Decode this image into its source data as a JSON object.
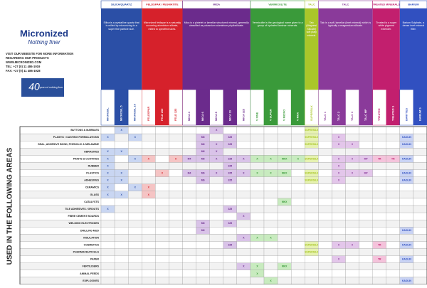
{
  "header": {
    "brand": "Micronized",
    "tagline": "Nothing finer",
    "info": [
      "VISIT OUR WEBSITE FOR MORE INFORMATION",
      "REGARDING OUR PRODUCTS",
      "WWW.MICRONIZED.COM",
      "TEL: +27 (0) 11 486-1919",
      "FAX: +27 (0) 11 486-1928"
    ],
    "badge_number": "40",
    "badge_text": "years of nothing finer"
  },
  "side_label": "USED IN THE FOLLOWING AREAS",
  "groups": [
    {
      "name": "SILICA/QUARTZ",
      "color": "#2b4fa6",
      "light": "#c9d6f2",
      "description": "Silica is a crystalline quartz that is milled by micronizing to a super fine particle size.",
      "columns": [
        "MICROSIL",
        "MICROSIL 5",
        "MICROSIL 10"
      ]
    },
    {
      "name": "FELDSPAR / PEGMATITE",
      "color": "#d6212b",
      "light": "#f5c4c4",
      "description": "Micronized feldspar is a naturally occurring aluminium silicate, milled to specified sizes.",
      "columns": [
        "FELDSPAR",
        "FELD 200",
        "FELD 325"
      ]
    },
    {
      "name": "MICA",
      "color": "#6b2b8c",
      "light": "#d9c3e8",
      "description": "Mica is a platelet or lamellar structured mineral, generally classified as potassium aluminium phyllosilicate.",
      "columns": [
        "MICA 4",
        "MICA 6",
        "MICA 8",
        "MICA 10",
        "MICA 325"
      ]
    },
    {
      "name": "VERMICULITE",
      "color": "#3a9a3a",
      "light": "#c8ebbf",
      "description": "Vermiculite is the geological name given to a group of hydrated laminar minerals.",
      "columns": [
        "V FINE",
        "V SUPER",
        "V MICRO",
        "V MKX"
      ]
    },
    {
      "name": "TALC",
      "color": "#aac62a",
      "light": "#e6f2b0",
      "description": "Talc (Magnesium Silicate) soft platy mineral.",
      "columns": [
        "SUPERSILK"
      ]
    },
    {
      "name": "TALC",
      "color": "#8a3a9a",
      "light": "#e3c6ea",
      "description": "Talc is a soft, lamellar (inert mineral) which is typically a magnesium silicate.",
      "columns": [
        "TALC 1",
        "TALC 2",
        "TALC 3",
        "TALC MP"
      ]
    },
    {
      "name": "TREATED MINERALS",
      "color": "#c21f6e",
      "light": "#f4c3db",
      "description": "Treated is a super white pigment extender.",
      "columns": [
        "TREATED",
        "TREATED S"
      ]
    },
    {
      "name": "BARIUM",
      "color": "#3150c0",
      "light": "#c9d3f4",
      "description": "Barium Sulphate, a dense inert mineral filler.",
      "columns": [
        "BARYTES",
        "BARIUM S"
      ]
    }
  ],
  "rows": [
    {
      "label": "BUTTONS & MARBLES",
      "cells": [
        null,
        "X",
        null,
        null,
        null,
        null,
        null,
        null,
        "X",
        null,
        null,
        null,
        null,
        null,
        null,
        "SUPERSILK",
        null,
        null,
        null,
        null,
        null,
        null,
        null,
        null
      ]
    },
    {
      "label": "PLASTIC / CASTING FORMULATIONS",
      "cells": [
        "X",
        null,
        "X",
        null,
        null,
        null,
        null,
        "M6",
        null,
        "325",
        null,
        null,
        null,
        null,
        null,
        "SUPERSILK",
        null,
        "X",
        null,
        null,
        null,
        null,
        "KAOLIN",
        null
      ]
    },
    {
      "label": "SEAL, ADHESIVE BOND, PHENOLIC & MELAMINE",
      "cells": [
        null,
        null,
        null,
        null,
        null,
        null,
        null,
        "M6",
        "X",
        "325",
        null,
        null,
        null,
        null,
        null,
        "SUPERSILK",
        null,
        "X",
        "X",
        null,
        null,
        null,
        "KAOLIN",
        null
      ]
    },
    {
      "label": "ABRASIVES",
      "cells": [
        "X",
        "X",
        null,
        null,
        null,
        null,
        null,
        "M6",
        "X",
        null,
        null,
        null,
        null,
        null,
        null,
        null,
        null,
        null,
        null,
        null,
        null,
        null,
        null,
        null
      ]
    },
    {
      "label": "PAINTS & COATINGS",
      "cells": [
        "X",
        null,
        "X",
        "X",
        null,
        "X",
        "M4",
        "M6",
        "X",
        "325",
        "X",
        "X",
        "X",
        "MKX",
        "X",
        "SUPERSILK",
        null,
        "X",
        "X",
        "MP",
        "TR",
        "TR",
        "KAOLIN",
        null
      ]
    },
    {
      "label": "RUBBER",
      "cells": [
        "X",
        null,
        null,
        null,
        null,
        null,
        null,
        null,
        null,
        "325",
        null,
        null,
        null,
        null,
        null,
        null,
        null,
        "X",
        null,
        null,
        null,
        null,
        null,
        null
      ]
    },
    {
      "label": "PLASTICS",
      "cells": [
        "X",
        "X",
        null,
        null,
        "X",
        null,
        "M4",
        "M6",
        "X",
        "325",
        "X",
        "X",
        "X",
        "MKX",
        null,
        "SUPERSILK",
        null,
        "X",
        "X",
        "MP",
        null,
        null,
        "KAOLIN",
        null
      ]
    },
    {
      "label": "ADHESIVES",
      "cells": [
        "X",
        "X",
        null,
        null,
        null,
        null,
        null,
        "M6",
        null,
        "325",
        null,
        null,
        null,
        null,
        null,
        "SUPERSILK",
        null,
        "X",
        null,
        null,
        null,
        null,
        "KAOLIN",
        null
      ]
    },
    {
      "label": "CERAMICS",
      "cells": [
        "X",
        null,
        "X",
        "X",
        null,
        null,
        null,
        null,
        null,
        null,
        null,
        null,
        null,
        null,
        null,
        null,
        null,
        null,
        null,
        null,
        null,
        null,
        null,
        null
      ]
    },
    {
      "label": "GLASS",
      "cells": [
        "X",
        "X",
        null,
        "X",
        null,
        null,
        null,
        null,
        null,
        null,
        null,
        null,
        null,
        null,
        null,
        null,
        null,
        null,
        null,
        null,
        null,
        null,
        null,
        null
      ]
    },
    {
      "label": "CATALYSTS",
      "cells": [
        null,
        null,
        null,
        null,
        null,
        null,
        null,
        null,
        null,
        null,
        null,
        null,
        null,
        "MKX",
        null,
        null,
        null,
        null,
        null,
        null,
        null,
        null,
        null,
        null
      ]
    },
    {
      "label": "TILE ADHESIVES / GROUTS",
      "cells": [
        "X",
        null,
        null,
        null,
        null,
        null,
        null,
        null,
        null,
        "325",
        null,
        null,
        null,
        null,
        null,
        null,
        null,
        null,
        null,
        null,
        null,
        null,
        null,
        null
      ]
    },
    {
      "label": "FIBRE CEMENT BOARDS",
      "cells": [
        null,
        null,
        null,
        null,
        null,
        null,
        null,
        null,
        null,
        null,
        "X",
        null,
        null,
        null,
        null,
        null,
        null,
        null,
        null,
        null,
        null,
        null,
        null,
        null
      ]
    },
    {
      "label": "WELDING ELECTRODES",
      "cells": [
        null,
        null,
        null,
        null,
        null,
        null,
        null,
        "M6",
        null,
        "325",
        null,
        null,
        null,
        null,
        null,
        null,
        null,
        null,
        null,
        null,
        null,
        null,
        null,
        null
      ]
    },
    {
      "label": "DRILLING MUD",
      "cells": [
        null,
        null,
        null,
        null,
        null,
        null,
        null,
        "M6",
        null,
        null,
        null,
        null,
        null,
        null,
        null,
        null,
        null,
        null,
        null,
        null,
        null,
        null,
        "KAOLIN",
        null
      ]
    },
    {
      "label": "INSULATION",
      "cells": [
        null,
        null,
        null,
        null,
        null,
        null,
        null,
        null,
        null,
        null,
        "X",
        "X",
        "X",
        null,
        null,
        null,
        null,
        null,
        null,
        null,
        null,
        null,
        null,
        null
      ]
    },
    {
      "label": "COSMETICS",
      "cells": [
        null,
        null,
        null,
        null,
        null,
        null,
        null,
        null,
        null,
        "325",
        null,
        null,
        null,
        null,
        null,
        "SUPERSILK",
        null,
        "X",
        "X",
        null,
        "TR",
        null,
        "KAOLIN",
        null
      ]
    },
    {
      "label": "PHARMACEUTICALS",
      "cells": [
        null,
        null,
        null,
        null,
        null,
        null,
        null,
        null,
        null,
        null,
        null,
        null,
        null,
        null,
        null,
        "SUPERSILK",
        null,
        null,
        null,
        null,
        null,
        null,
        null,
        null
      ]
    },
    {
      "label": "PAPER",
      "cells": [
        null,
        null,
        null,
        null,
        null,
        null,
        null,
        null,
        null,
        null,
        null,
        null,
        null,
        null,
        null,
        null,
        null,
        "X",
        null,
        null,
        "TR",
        null,
        "KAOLIN",
        null
      ]
    },
    {
      "label": "FERTILISERS",
      "cells": [
        null,
        null,
        null,
        null,
        null,
        null,
        null,
        null,
        null,
        null,
        "X",
        "X",
        null,
        "MKX",
        null,
        null,
        null,
        null,
        null,
        null,
        null,
        null,
        null,
        null
      ]
    },
    {
      "label": "ANIMAL FEEDS",
      "cells": [
        null,
        null,
        null,
        null,
        null,
        null,
        null,
        null,
        null,
        null,
        null,
        "X",
        null,
        null,
        null,
        null,
        null,
        null,
        null,
        null,
        null,
        null,
        null,
        null
      ]
    },
    {
      "label": "EXPLOSIVES",
      "cells": [
        null,
        null,
        null,
        null,
        null,
        null,
        null,
        null,
        null,
        null,
        null,
        null,
        "X",
        null,
        null,
        null,
        null,
        null,
        null,
        null,
        null,
        null,
        "KAOLIN",
        null
      ]
    }
  ]
}
